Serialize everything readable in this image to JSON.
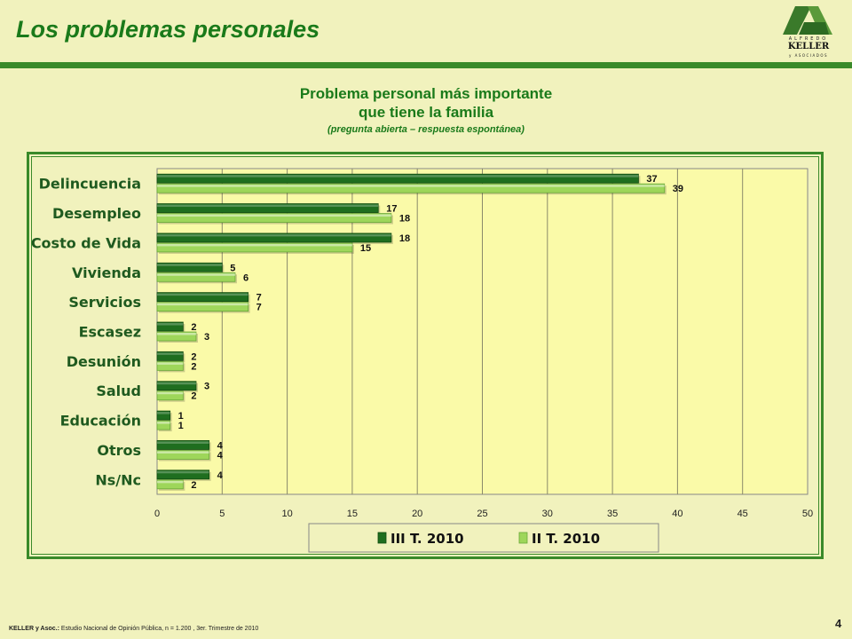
{
  "header": {
    "title": "Los problemas personales",
    "logo_top": "ALFREDO",
    "logo_name": "KELLER",
    "logo_sub": "y ASOCIADOS"
  },
  "chart_data": {
    "type": "bar",
    "orientation": "horizontal",
    "title": "Problema personal más importante que tiene la familia",
    "title_line1": "Problema personal más importante",
    "title_line2": "que tiene la familia",
    "subtitle": "(pregunta abierta – respuesta espontánea)",
    "categories": [
      "Delincuencia",
      "Desempleo",
      "Costo de Vida",
      "Vivienda",
      "Servicios",
      "Escasez",
      "Desunión",
      "Salud",
      "Educación",
      "Otros",
      "Ns/Nc"
    ],
    "series": [
      {
        "name": "III T. 2010",
        "color": "#1f6e1f",
        "values": [
          37,
          17,
          18,
          5,
          7,
          2,
          2,
          3,
          1,
          4,
          4
        ]
      },
      {
        "name": "II T. 2010",
        "color": "#9ed65a",
        "values": [
          39,
          18,
          15,
          6,
          7,
          3,
          2,
          2,
          1,
          4,
          2
        ]
      }
    ],
    "xlim": [
      0,
      50
    ],
    "xticks": [
      0,
      5,
      10,
      15,
      20,
      25,
      30,
      35,
      40,
      45,
      50
    ],
    "grid": true,
    "legend_position": "bottom",
    "plot_background": "#fafaa8"
  },
  "footer": {
    "source_bold": "KELLER y Asoc.:",
    "source_text": " Estudio Nacional de Opinión Pública, n = 1.200 , 3er. Trimestre de 2010",
    "page_number": "4"
  }
}
